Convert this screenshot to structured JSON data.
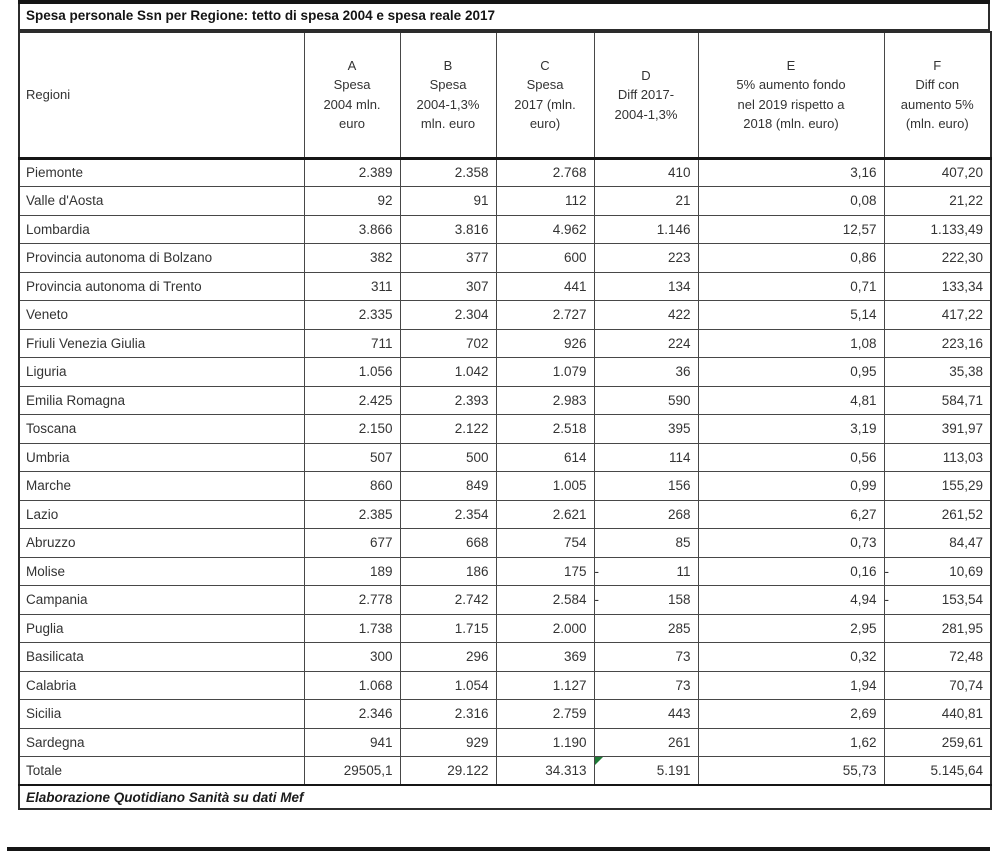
{
  "title": "Spesa personale Ssn per Regione: tetto di spesa 2004 e spesa reale 2017",
  "footer": "Elaborazione Quotidiano Sanità su dati Mef",
  "colors": {
    "text": "#333333",
    "border_thin": "#474747",
    "border_thick": "#151515",
    "formula_warning_triangle": "#1e7a36",
    "background": "#ffffff"
  },
  "column_keys": [
    "regione",
    "a",
    "b",
    "c",
    "d",
    "e",
    "f"
  ],
  "columns": [
    {
      "key": "regione",
      "label": "Regioni"
    },
    {
      "key": "a",
      "label": "A\nSpesa\n2004 mln.\neuro"
    },
    {
      "key": "b",
      "label": "B\nSpesa\n2004-1,3%\nmln. euro"
    },
    {
      "key": "c",
      "label": "C\nSpesa\n2017 (mln.\neuro)"
    },
    {
      "key": "d",
      "label": "D\nDiff 2017-\n2004-1,3%"
    },
    {
      "key": "e",
      "label": "E\n5% aumento fondo\nnel 2019 rispetto a\n2018 (mln. euro)"
    },
    {
      "key": "f",
      "label": "F\nDiff con\naumento 5%\n(mln. euro)"
    }
  ],
  "rows": [
    {
      "regione": "Piemonte",
      "a": "2.389",
      "b": "2.358",
      "c": "2.768",
      "d": "410",
      "e": "3,16",
      "f": "407,20"
    },
    {
      "regione": "Valle d'Aosta",
      "a": "92",
      "b": "91",
      "c": "112",
      "d": "21",
      "e": "0,08",
      "f": "21,22"
    },
    {
      "regione": "Lombardia",
      "a": "3.866",
      "b": "3.816",
      "c": "4.962",
      "d": "1.146",
      "e": "12,57",
      "f": "1.133,49"
    },
    {
      "regione": "Provincia autonoma di Bolzano",
      "a": "382",
      "b": "377",
      "c": "600",
      "d": "223",
      "e": "0,86",
      "f": "222,30"
    },
    {
      "regione": "Provincia autonoma di Trento",
      "a": "311",
      "b": "307",
      "c": "441",
      "d": "134",
      "e": "0,71",
      "f": "133,34"
    },
    {
      "regione": "Veneto",
      "a": "2.335",
      "b": "2.304",
      "c": "2.727",
      "d": "422",
      "e": "5,14",
      "f": "417,22"
    },
    {
      "regione": "Friuli Venezia Giulia",
      "a": "711",
      "b": "702",
      "c": "926",
      "d": "224",
      "e": "1,08",
      "f": "223,16"
    },
    {
      "regione": "Liguria",
      "a": "1.056",
      "b": "1.042",
      "c": "1.079",
      "d": "36",
      "e": "0,95",
      "f": "35,38"
    },
    {
      "regione": "Emilia Romagna",
      "a": "2.425",
      "b": "2.393",
      "c": "2.983",
      "d": "590",
      "e": "4,81",
      "f": "584,71"
    },
    {
      "regione": "Toscana",
      "a": "2.150",
      "b": "2.122",
      "c": "2.518",
      "d": "395",
      "e": "3,19",
      "f": "391,97"
    },
    {
      "regione": "Umbria",
      "a": "507",
      "b": "500",
      "c": "614",
      "d": "114",
      "e": "0,56",
      "f": "113,03"
    },
    {
      "regione": "Marche",
      "a": "860",
      "b": "849",
      "c": "1.005",
      "d": "156",
      "e": "0,99",
      "f": "155,29"
    },
    {
      "regione": "Lazio",
      "a": "2.385",
      "b": "2.354",
      "c": "2.621",
      "d": "268",
      "e": "6,27",
      "f": "261,52"
    },
    {
      "regione": "Abruzzo",
      "a": "677",
      "b": "668",
      "c": "754",
      "d": "85",
      "e": "0,73",
      "f": "84,47"
    },
    {
      "regione": "Molise",
      "a": "189",
      "b": "186",
      "c": "175",
      "d": "- 11",
      "e": "0,16",
      "f": "- 10,69"
    },
    {
      "regione": "Campania",
      "a": "2.778",
      "b": "2.742",
      "c": "2.584",
      "d": "- 158",
      "e": "4,94",
      "f": "- 153,54"
    },
    {
      "regione": "Puglia",
      "a": "1.738",
      "b": "1.715",
      "c": "2.000",
      "d": "285",
      "e": "2,95",
      "f": "281,95"
    },
    {
      "regione": "Basilicata",
      "a": "300",
      "b": "296",
      "c": "369",
      "d": "73",
      "e": "0,32",
      "f": "72,48"
    },
    {
      "regione": "Calabria",
      "a": "1.068",
      "b": "1.054",
      "c": "1.127",
      "d": "73",
      "e": "1,94",
      "f": "70,74"
    },
    {
      "regione": "Sicilia",
      "a": "2.346",
      "b": "2.316",
      "c": "2.759",
      "d": "443",
      "e": "2,69",
      "f": "440,81"
    },
    {
      "regione": "Sardegna",
      "a": "941",
      "b": "929",
      "c": "1.190",
      "d": "261",
      "e": "1,62",
      "f": "259,61"
    }
  ],
  "totale": {
    "regione": "Totale",
    "a": "29505,1",
    "b": "29.122",
    "c": "34.313",
    "d": "5.191",
    "e": "55,73",
    "f": "5.145,64",
    "d_marker": "green-triangle"
  }
}
